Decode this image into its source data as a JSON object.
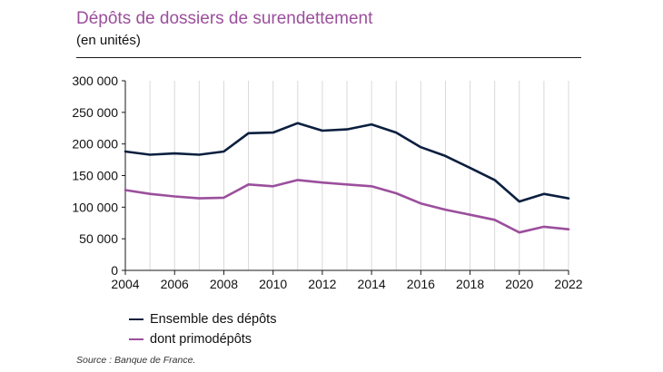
{
  "header": {
    "title": "Dépôts de dossiers de surendettement",
    "subtitle": "(en unités)"
  },
  "source": "Source : Banque de France.",
  "colors": {
    "series_0": "#0b1f3f",
    "series_1": "#9b4f9c",
    "grid": "#d9d9d9",
    "axis": "#1a1a1a"
  },
  "chart_data": {
    "type": "line",
    "title": "Dépôts de dossiers de surendettement",
    "subtitle": "(en unités)",
    "xlabel": "",
    "ylabel": "",
    "x": [
      2004,
      2005,
      2006,
      2007,
      2008,
      2009,
      2010,
      2011,
      2012,
      2013,
      2014,
      2015,
      2016,
      2017,
      2018,
      2019,
      2020,
      2021,
      2022
    ],
    "xlim": [
      2004,
      2022
    ],
    "ylim": [
      0,
      300000
    ],
    "x_ticks": [
      "2004",
      "2006",
      "2008",
      "2010",
      "2012",
      "2014",
      "2016",
      "2018",
      "2020",
      "2022"
    ],
    "x_tick_values": [
      2004,
      2006,
      2008,
      2010,
      2012,
      2014,
      2016,
      2018,
      2020,
      2022
    ],
    "y_ticks": [
      "0",
      "50 000",
      "100 000",
      "150 000",
      "200 000",
      "250 000",
      "300 000"
    ],
    "y_tick_values": [
      0,
      50000,
      100000,
      150000,
      200000,
      250000,
      300000
    ],
    "grid": "vertical",
    "legend_position": "bottom-left",
    "series": [
      {
        "name": "Ensemble des dépôts",
        "color": "#0b1f3f",
        "values": [
          188000,
          183000,
          185000,
          183000,
          188000,
          217000,
          218000,
          233000,
          221000,
          223000,
          231000,
          218000,
          195000,
          181000,
          162000,
          143000,
          109000,
          121000,
          114000
        ]
      },
      {
        "name": "dont primodépôts",
        "color": "#9b4f9c",
        "values": [
          127000,
          121000,
          117000,
          114000,
          115000,
          136000,
          133000,
          143000,
          139000,
          136000,
          133000,
          122000,
          106000,
          96000,
          88000,
          80000,
          60000,
          69000,
          65000
        ]
      }
    ]
  }
}
